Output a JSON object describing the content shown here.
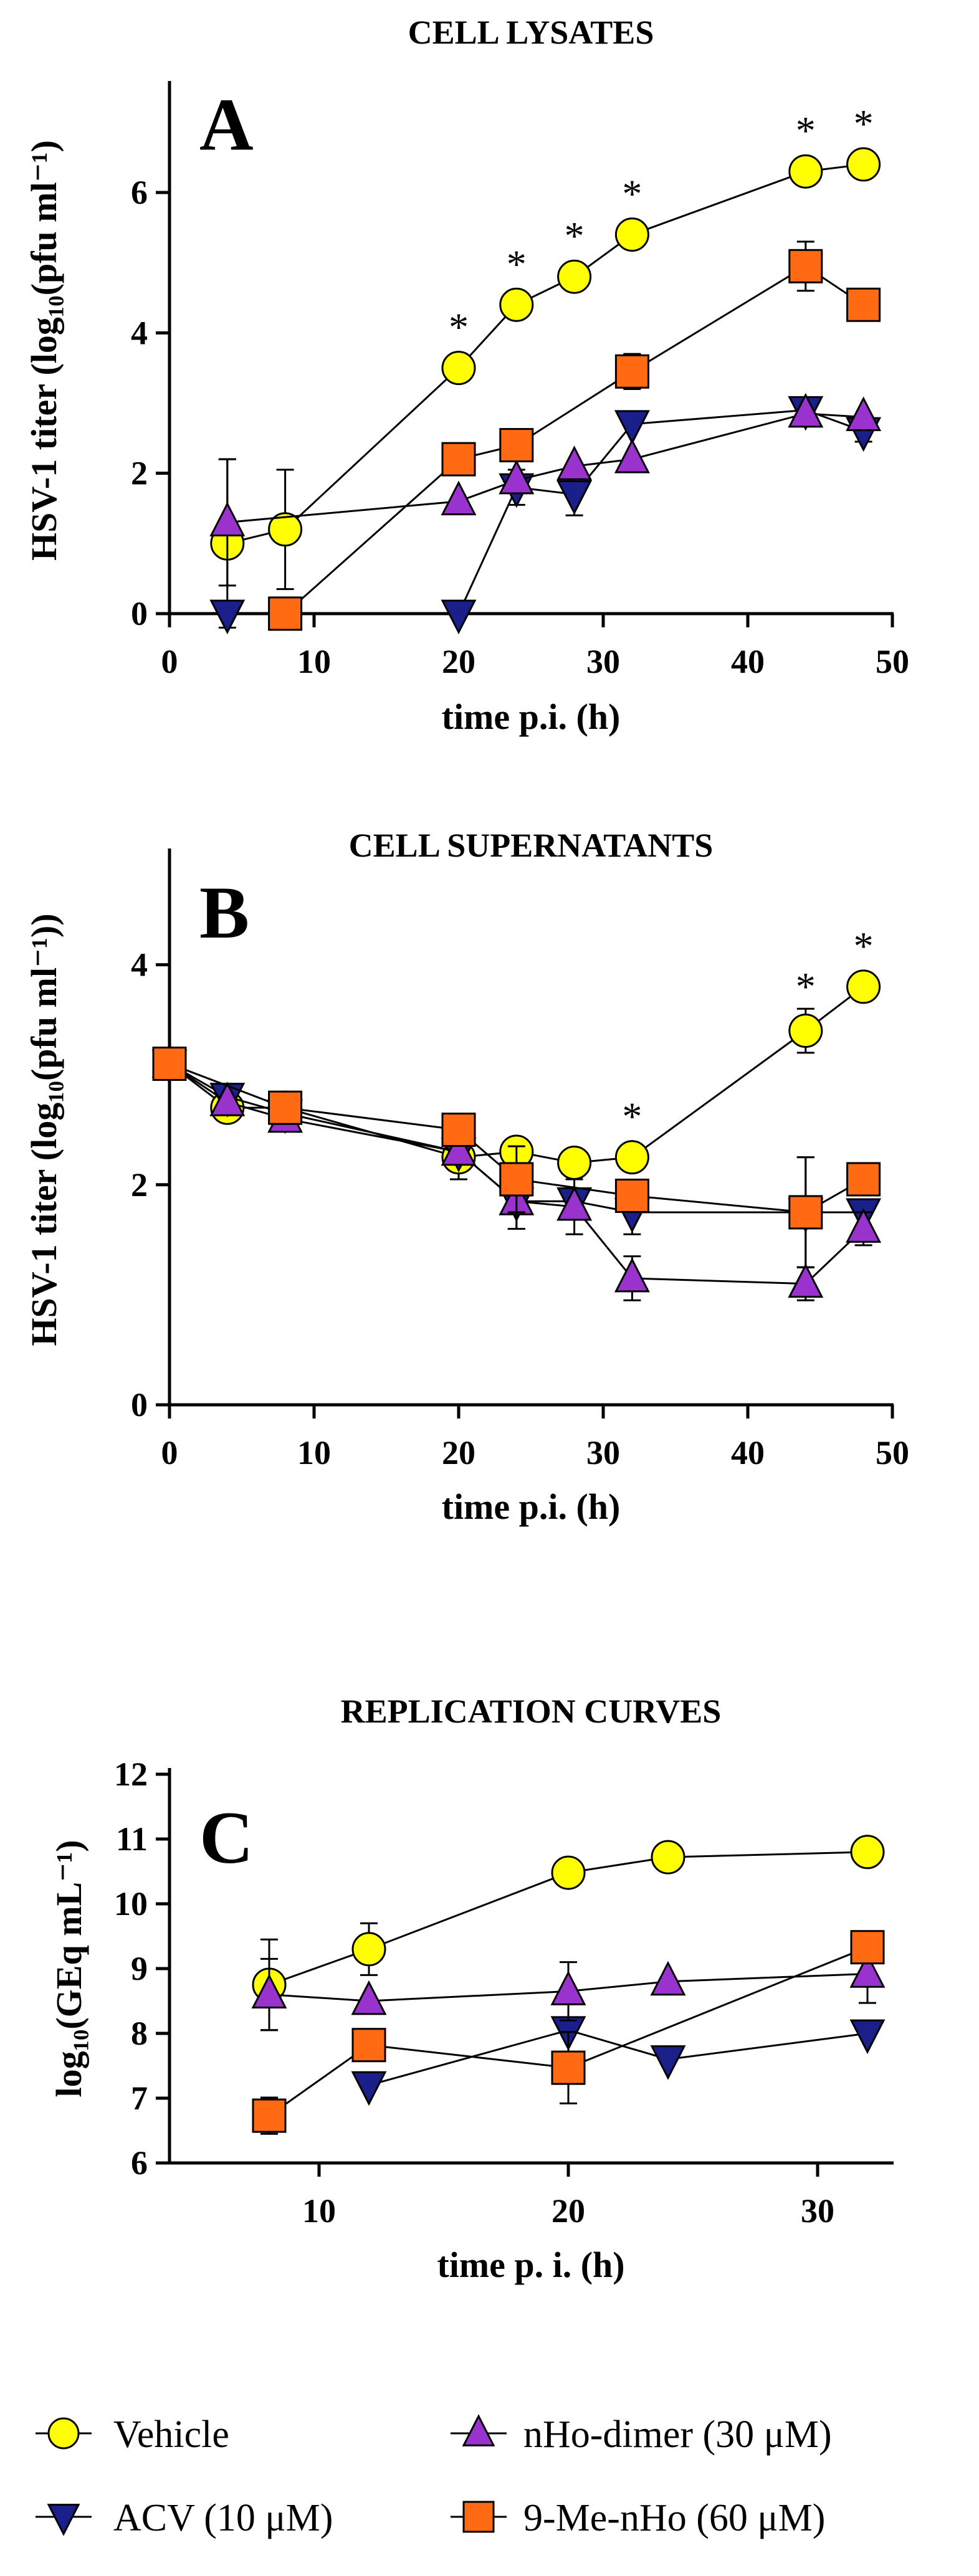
{
  "chart_data": [
    {
      "type": "line",
      "panel_letter": "A",
      "title": "CELL LYSATES",
      "xlabel": "time p.i. (h)",
      "ylabel": "HSV-1 titer (log₁₀(pfu ml⁻¹)",
      "xlim": [
        0,
        50
      ],
      "ylim": [
        0,
        7.5
      ],
      "xticks": [
        0,
        10,
        20,
        30,
        40,
        50
      ],
      "yticks": [
        0,
        2,
        4,
        6
      ],
      "grid": false,
      "series": [
        {
          "name": "Vehicle",
          "marker": "circle",
          "color": "#FFFF00",
          "x": [
            4,
            8,
            20,
            24,
            28,
            32,
            44,
            48
          ],
          "y": [
            1.0,
            1.2,
            3.5,
            4.4,
            4.8,
            5.4,
            6.3,
            6.4
          ],
          "err": [
            1.2,
            0.85,
            0,
            0,
            0,
            0,
            0,
            0
          ],
          "sig": [
            false,
            false,
            true,
            true,
            true,
            true,
            true,
            true
          ]
        },
        {
          "name": "ACV (10 μM)",
          "marker": "triangle-down",
          "color": "#1B1F8A",
          "x": [
            4,
            20,
            24,
            28,
            32,
            44,
            48
          ],
          "y": [
            0.0,
            0.0,
            1.8,
            1.7,
            2.7,
            2.9,
            2.6
          ],
          "err": [
            0,
            0,
            0.25,
            0.3,
            0,
            0.15,
            0.15
          ]
        },
        {
          "name": "nHo-dimer (30 μM)",
          "marker": "triangle-up",
          "color": "#9A32CD",
          "x": [
            4,
            20,
            24,
            28,
            32,
            44,
            48
          ],
          "y": [
            1.3,
            1.6,
            1.9,
            2.1,
            2.2,
            2.85,
            2.8
          ],
          "err": [
            0.9,
            0,
            0,
            0,
            0,
            0,
            0
          ]
        },
        {
          "name": "9-Me-nHo (60 μM)",
          "marker": "square",
          "color": "#FF6A13",
          "x": [
            8,
            20,
            24,
            32,
            44,
            48
          ],
          "y": [
            0.0,
            2.2,
            2.4,
            3.45,
            4.95,
            4.4
          ],
          "err": [
            0,
            0,
            0,
            0.25,
            0.35,
            0
          ]
        }
      ]
    },
    {
      "type": "line",
      "panel_letter": "B",
      "title": "CELL SUPERNATANTS",
      "xlabel": "time p.i. (h)",
      "ylabel": "HSV-1 titer (log₁₀(pfu ml⁻¹))",
      "xlim": [
        0,
        50
      ],
      "ylim": [
        0,
        5
      ],
      "xticks": [
        0,
        10,
        20,
        30,
        40,
        50
      ],
      "yticks": [
        0,
        2,
        4
      ],
      "grid": false,
      "series": [
        {
          "name": "Vehicle",
          "marker": "circle",
          "color": "#FFFF00",
          "x": [
            0,
            4,
            8,
            20,
            24,
            28,
            32,
            44,
            48
          ],
          "y": [
            3.1,
            2.7,
            2.7,
            2.25,
            2.3,
            2.2,
            2.25,
            3.4,
            3.8
          ],
          "err": [
            0,
            0,
            0,
            0.2,
            0,
            0,
            0,
            0.2,
            0
          ],
          "sig": [
            false,
            false,
            false,
            false,
            false,
            false,
            true,
            true,
            true
          ]
        },
        {
          "name": "ACV (10 μM)",
          "marker": "triangle-down",
          "color": "#1B1F8A",
          "x": [
            0,
            4,
            8,
            20,
            24,
            28,
            32,
            44,
            48
          ],
          "y": [
            3.1,
            2.8,
            2.65,
            2.3,
            1.85,
            1.85,
            1.75,
            1.75,
            1.75
          ],
          "err": [
            0,
            0,
            0,
            0,
            0.25,
            0,
            0.2,
            0.5,
            0
          ]
        },
        {
          "name": "nHo-dimer (30 μM)",
          "marker": "triangle-up",
          "color": "#9A32CD",
          "x": [
            0,
            4,
            8,
            20,
            24,
            28,
            32,
            44,
            48
          ],
          "y": [
            3.1,
            2.75,
            2.6,
            2.3,
            1.85,
            1.8,
            1.15,
            1.1,
            1.6
          ],
          "err": [
            0,
            0,
            0,
            0,
            0.25,
            0.25,
            0.2,
            0.15,
            0.15
          ]
        },
        {
          "name": "9-Me-nHo (60 μM)",
          "marker": "square",
          "color": "#FF6A13",
          "x": [
            0,
            8,
            20,
            24,
            32,
            44,
            48
          ],
          "y": [
            3.1,
            2.7,
            2.5,
            2.05,
            1.9,
            1.75,
            2.05
          ],
          "err": [
            0,
            0,
            0,
            0.3,
            0,
            0.5,
            0
          ]
        }
      ]
    },
    {
      "type": "line",
      "panel_letter": "C",
      "title": "REPLICATION CURVES",
      "xlabel": "time p. i. (h)",
      "ylabel": "log₁₀(GEq mL⁻¹)",
      "xlim": [
        4,
        33
      ],
      "ylim": [
        6,
        12
      ],
      "xticks": [
        10,
        20,
        30
      ],
      "yticks": [
        6,
        7,
        8,
        9,
        10,
        11,
        12
      ],
      "grid": false,
      "series": [
        {
          "name": "Vehicle",
          "marker": "circle",
          "color": "#FFFF00",
          "x": [
            8,
            12,
            20,
            24,
            32
          ],
          "y": [
            8.75,
            9.3,
            10.48,
            10.72,
            10.8
          ],
          "err": [
            0.7,
            0.4,
            0,
            0,
            0
          ]
        },
        {
          "name": "ACV (10 μM)",
          "marker": "triangle-down",
          "color": "#1B1F8A",
          "x": [
            12,
            20,
            24,
            32
          ],
          "y": [
            7.2,
            8.05,
            7.6,
            8.0
          ],
          "err": [
            0,
            0,
            0,
            0
          ]
        },
        {
          "name": "nHo-dimer (30 μM)",
          "marker": "triangle-up",
          "color": "#9A32CD",
          "x": [
            8,
            12,
            20,
            24,
            32
          ],
          "y": [
            8.6,
            8.5,
            8.65,
            8.8,
            8.92
          ],
          "err": [
            0.55,
            0,
            0.45,
            0,
            0.45
          ]
        },
        {
          "name": "9-Me-nHo (60 μM)",
          "marker": "square",
          "color": "#FF6A13",
          "x": [
            8,
            12,
            20,
            32
          ],
          "y": [
            6.73,
            7.82,
            7.47,
            9.33
          ],
          "err": [
            0.28,
            0,
            0.55,
            0.12
          ]
        }
      ]
    }
  ],
  "significance_marker": "*",
  "legend": [
    {
      "label": "Vehicle",
      "marker": "circle",
      "color": "#FFFF00"
    },
    {
      "label": "nHo-dimer (30 μM)",
      "marker": "triangle-up",
      "color": "#9A32CD"
    },
    {
      "label": "ACV (10 μM)",
      "marker": "triangle-down",
      "color": "#1B1F8A"
    },
    {
      "label": "9-Me-nHo (60 μM)",
      "marker": "square",
      "color": "#FF6A13"
    }
  ]
}
